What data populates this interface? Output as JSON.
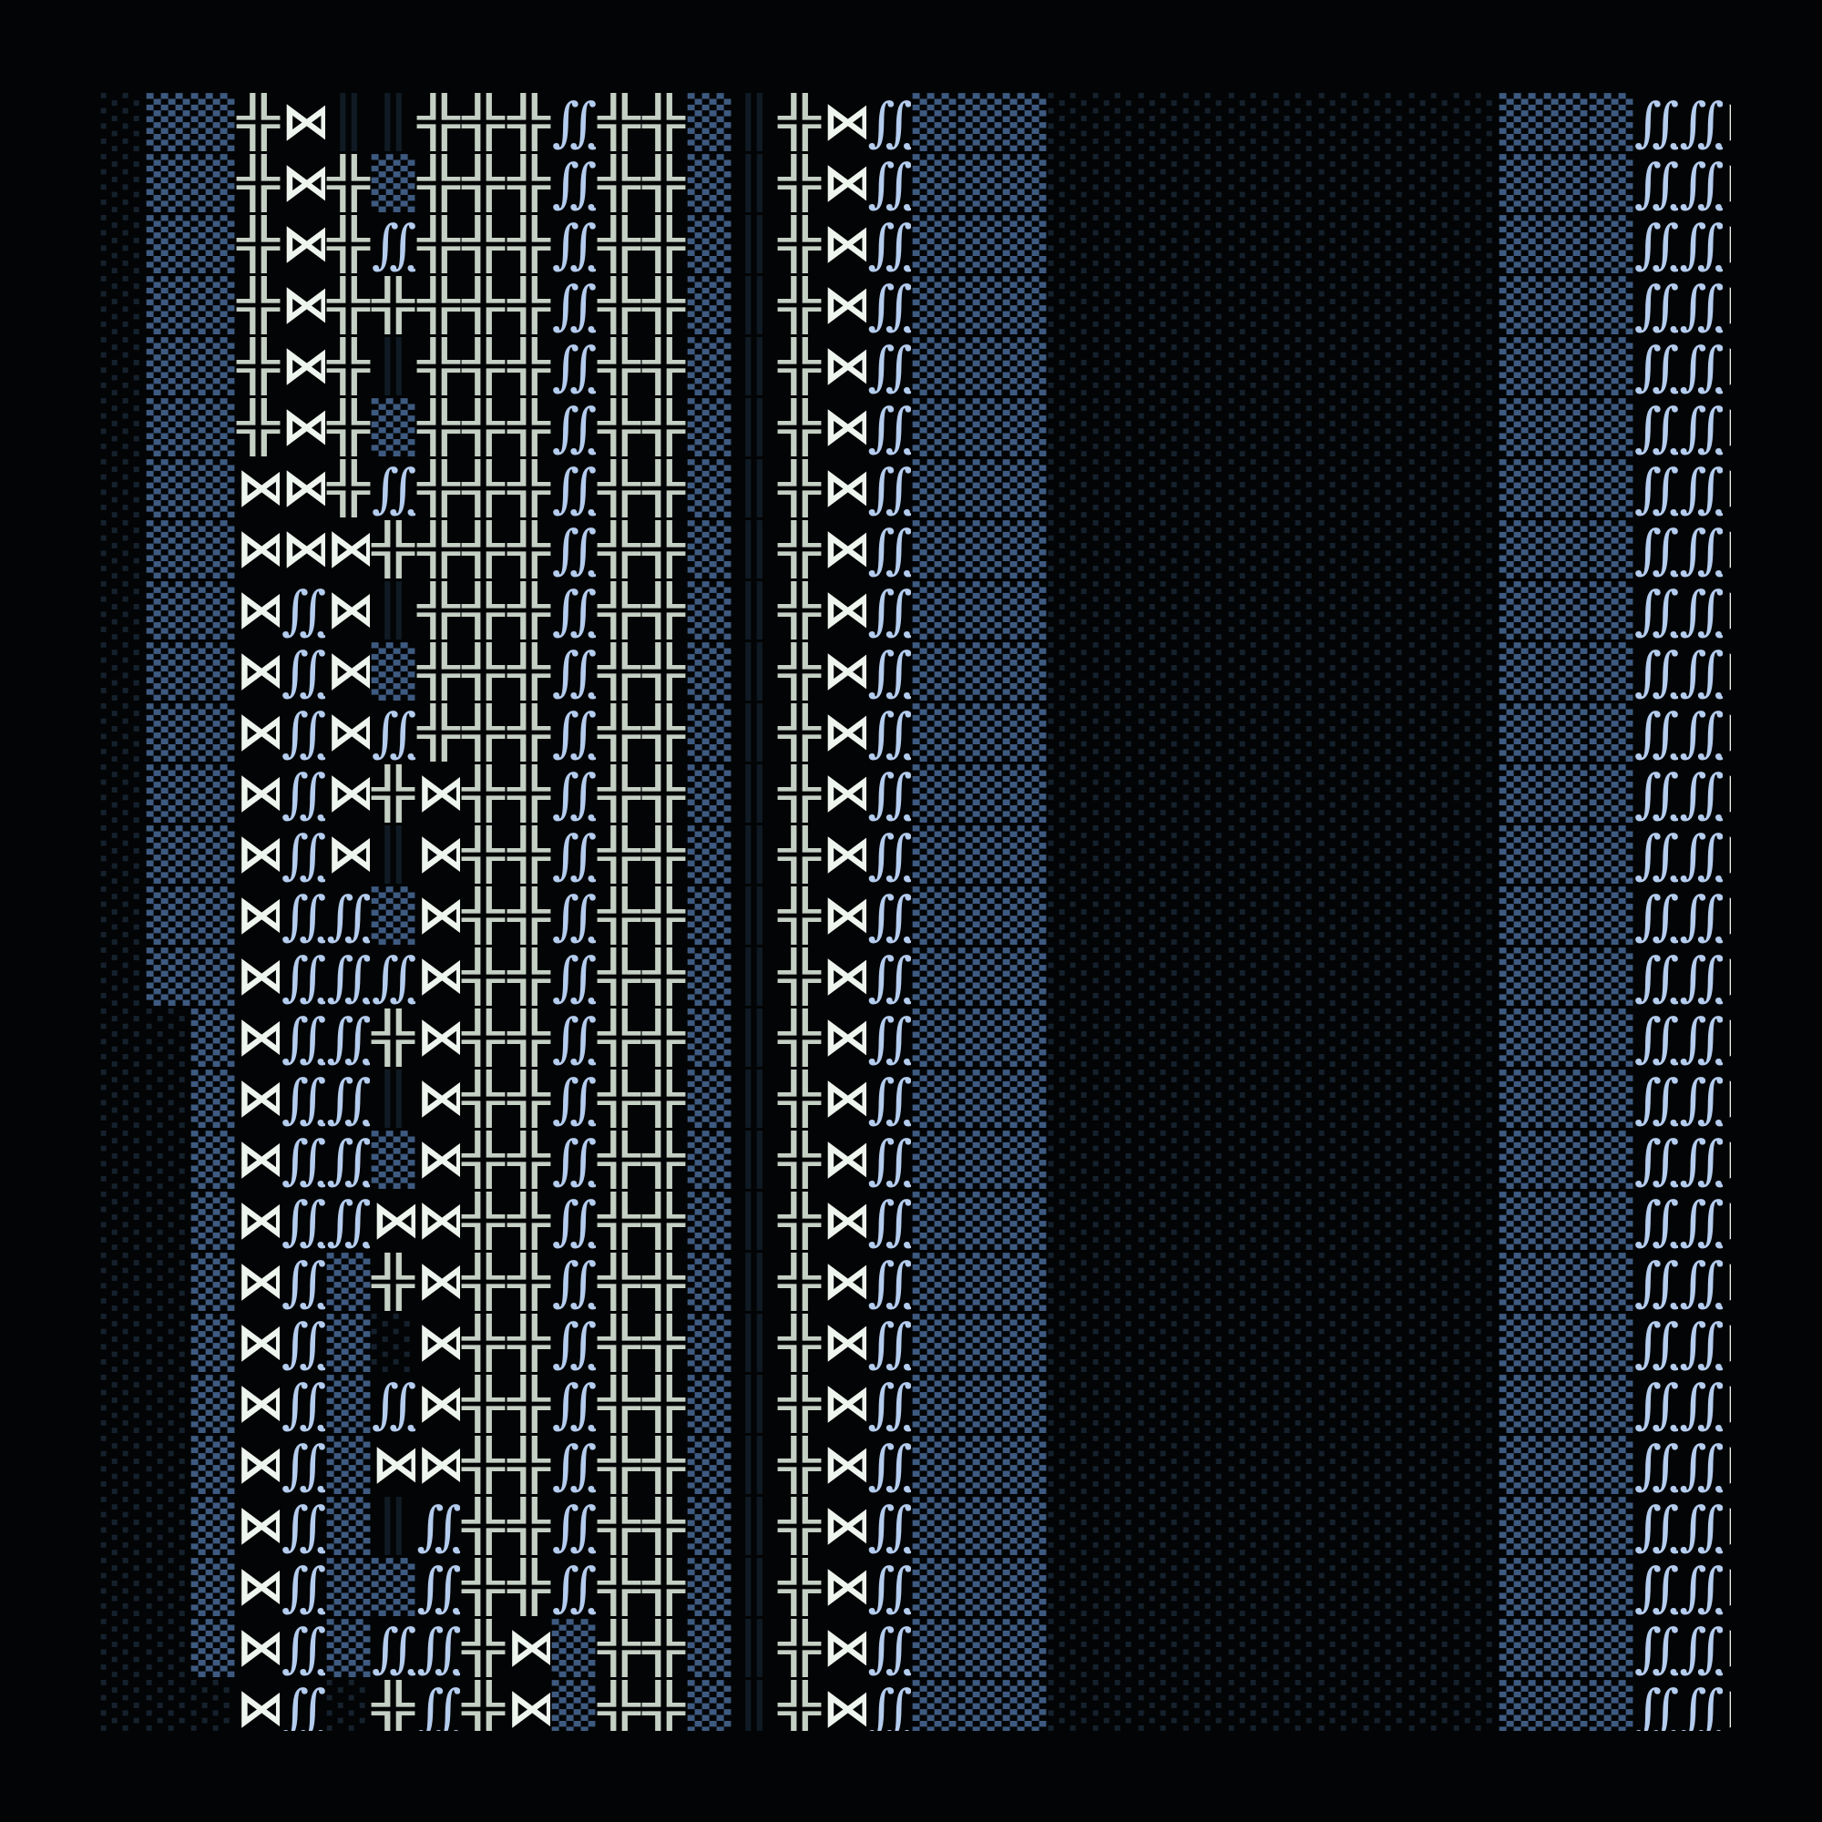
{
  "glyph_types": {
    "╬": {
      "name": "double-cross-glyph",
      "cls": "cross",
      "color": "#c5d0c5"
    },
    "⋈": {
      "name": "bowtie-glyph",
      "cls": "bow",
      "color": "#eef4ee"
    },
    "∭": {
      "name": "triple-integral-glyph",
      "cls": "int",
      "color": "#b4ccee"
    },
    "▒": {
      "name": "blue-dot-shade-glyph",
      "cls": "dots-blue",
      "color": "#3e5a80"
    },
    "░": {
      "name": "dim-dot-shade-glyph",
      "cls": "dots-dim",
      "color": "#15212d"
    },
    "║": {
      "name": "dark-double-line-glyph",
      "cls": "lines",
      "color": "#0f1a24"
    }
  },
  "background": "#030405",
  "rows": [
    "░▒▒╬⋈║║╬╬╬∭╬╬▒║╬⋈∭▒▒▒░░░░░░░░░░▒▒▒∭∭⋈",
    "░▒▒╬⋈╬▒╬╬╬∭╬╬▒║╬⋈∭▒▒▒░░░░░░░░░░▒▒▒∭∭⋈",
    "░▒▒╬⋈╬∭╬╬╬∭╬╬▒║╬⋈∭▒▒▒░░░░░░░░░░▒▒▒∭∭⋈",
    "░▒▒╬⋈╬╬╬╬╬∭╬╬▒║╬⋈∭▒▒▒░░░░░░░░░░▒▒▒∭∭⋈",
    "░▒▒╬⋈╬║╬╬╬∭╬╬▒║╬⋈∭▒▒▒░░░░░░░░░░▒▒▒∭∭⋈",
    "░▒▒╬⋈╬▒╬╬╬∭╬╬▒║╬⋈∭▒▒▒░░░░░░░░░░▒▒▒∭∭⋈",
    "░▒▒⋈⋈╬∭╬╬╬∭╬╬▒║╬⋈∭▒▒▒░░░░░░░░░░▒▒▒∭∭⋈",
    "░▒▒⋈⋈⋈╬╬╬╬∭╬╬▒║╬⋈∭▒▒▒░░░░░░░░░░▒▒▒∭∭⋈",
    "░▒▒⋈∭⋈║╬╬╬∭╬╬▒║╬⋈∭▒▒▒░░░░░░░░░░▒▒▒∭∭⋈",
    "░▒▒⋈∭⋈▒╬╬╬∭╬╬▒║╬⋈∭▒▒▒░░░░░░░░░░▒▒▒∭∭⋈",
    "░▒▒⋈∭⋈∭╬╬╬∭╬╬▒║╬⋈∭▒▒▒░░░░░░░░░░▒▒▒∭∭⋈",
    "░▒▒⋈∭⋈╬⋈╬╬∭╬╬▒║╬⋈∭▒▒▒░░░░░░░░░░▒▒▒∭∭⋈",
    "░▒▒⋈∭⋈║⋈╬╬∭╬╬▒║╬⋈∭▒▒▒░░░░░░░░░░▒▒▒∭∭⋈",
    "░▒▒⋈∭∭▒⋈╬╬∭╬╬▒║╬⋈∭▒▒▒░░░░░░░░░░▒▒▒∭∭⋈",
    "░▒▒⋈∭∭∭⋈╬╬∭╬╬▒║╬⋈∭▒▒▒░░░░░░░░░░▒▒▒∭∭⋈",
    "░░▒⋈∭∭╬⋈╬╬∭╬╬▒║╬⋈∭▒▒▒░░░░░░░░░░▒▒▒∭∭⋈",
    "░░▒⋈∭∭║⋈╬╬∭╬╬▒║╬⋈∭▒▒▒░░░░░░░░░░▒▒▒∭∭⋈",
    "░░▒⋈∭∭▒⋈╬╬∭╬╬▒║╬⋈∭▒▒▒░░░░░░░░░░▒▒▒∭∭⋈",
    "░░▒⋈∭∭⋈⋈╬╬∭╬╬▒║╬⋈∭▒▒▒░░░░░░░░░░▒▒▒∭∭⋈",
    "░░▒⋈∭▒╬⋈╬╬∭╬╬▒║╬⋈∭▒▒▒░░░░░░░░░░▒▒▒∭∭⋈",
    "░░▒⋈∭▒░⋈╬╬∭╬╬▒║╬⋈∭▒▒▒░░░░░░░░░░▒▒▒∭∭⋈",
    "░░▒⋈∭▒∭⋈╬╬∭╬╬▒║╬⋈∭▒▒▒░░░░░░░░░░▒▒▒∭∭⋈",
    "░░▒⋈∭▒⋈⋈╬╬∭╬╬▒║╬⋈∭▒▒▒░░░░░░░░░░▒▒▒∭∭⋈",
    "░░▒⋈∭▒║∭╬╬∭╬╬▒║╬⋈∭▒▒▒░░░░░░░░░░▒▒▒∭∭⋈",
    "░░▒⋈∭▒▒∭╬╬∭╬╬▒║╬⋈∭▒▒▒░░░░░░░░░░▒▒▒∭∭⋈",
    "░░▒⋈∭▒∭∭╬⋈▒╬╬▒║╬⋈∭▒▒▒░░░░░░░░░░▒▒▒∭∭⋈",
    "░░░⋈∭░╬∭╬⋈▒╬╬▒║╬⋈∭▒▒▒░░░░░░░░░░▒▒▒∭∭⋈"
  ]
}
